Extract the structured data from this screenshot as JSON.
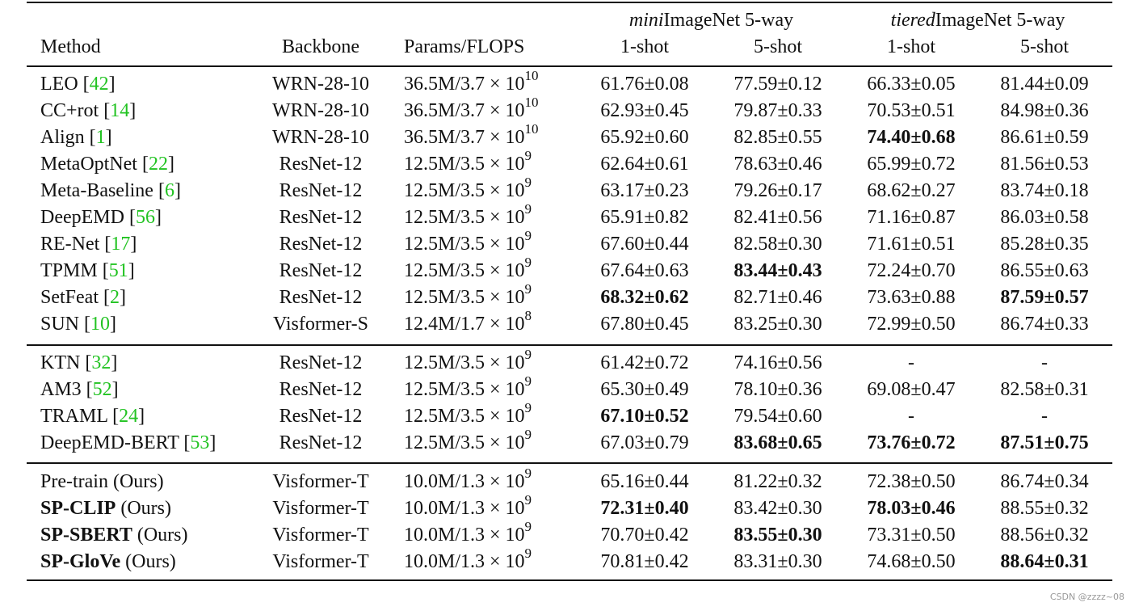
{
  "header": {
    "method": "Method",
    "backbone": "Backbone",
    "params": "Params/FLOPS",
    "groups": [
      {
        "title": [
          {
            "t": "mini",
            "style": "italic"
          },
          {
            "t": "ImageNet 5-way"
          }
        ],
        "columns": [
          "1-shot",
          "5-shot"
        ]
      },
      {
        "title": [
          {
            "t": "tiered",
            "style": "italic"
          },
          {
            "t": "ImageNet 5-way"
          }
        ],
        "columns": [
          "1-shot",
          "5-shot"
        ]
      }
    ]
  },
  "sections": [
    [
      {
        "method": [
          {
            "t": "LEO ["
          },
          {
            "t": "42",
            "style": "cite"
          },
          {
            "t": "]"
          }
        ],
        "backbone": "WRN-28-10",
        "params": {
          "base": "36.5M/3.7 × 10",
          "exp": "10"
        },
        "results": [
          {
            "text": "61.76±0.08"
          },
          {
            "text": "77.59±0.12"
          },
          {
            "text": "66.33±0.05"
          },
          {
            "text": "81.44±0.09"
          }
        ]
      },
      {
        "method": [
          {
            "t": "CC+rot ["
          },
          {
            "t": "14",
            "style": "cite"
          },
          {
            "t": "]"
          }
        ],
        "backbone": "WRN-28-10",
        "params": {
          "base": "36.5M/3.7 × 10",
          "exp": "10"
        },
        "results": [
          {
            "text": "62.93±0.45"
          },
          {
            "text": "79.87±0.33"
          },
          {
            "text": "70.53±0.51"
          },
          {
            "text": "84.98±0.36"
          }
        ]
      },
      {
        "method": [
          {
            "t": "Align ["
          },
          {
            "t": "1",
            "style": "cite"
          },
          {
            "t": "]"
          }
        ],
        "backbone": "WRN-28-10",
        "params": {
          "base": "36.5M/3.7 × 10",
          "exp": "10"
        },
        "results": [
          {
            "text": "65.92±0.60"
          },
          {
            "text": "82.85±0.55"
          },
          {
            "text": "74.40±0.68",
            "bold": true
          },
          {
            "text": "86.61±0.59"
          }
        ]
      },
      {
        "method": [
          {
            "t": "MetaOptNet ["
          },
          {
            "t": "22",
            "style": "cite"
          },
          {
            "t": "]"
          }
        ],
        "backbone": "ResNet-12",
        "params": {
          "base": "12.5M/3.5 × 10",
          "exp": "9"
        },
        "results": [
          {
            "text": "62.64±0.61"
          },
          {
            "text": "78.63±0.46"
          },
          {
            "text": "65.99±0.72"
          },
          {
            "text": "81.56±0.53"
          }
        ]
      },
      {
        "method": [
          {
            "t": "Meta-Baseline ["
          },
          {
            "t": "6",
            "style": "cite"
          },
          {
            "t": "]"
          }
        ],
        "backbone": "ResNet-12",
        "params": {
          "base": "12.5M/3.5 × 10",
          "exp": "9"
        },
        "results": [
          {
            "text": "63.17±0.23"
          },
          {
            "text": "79.26±0.17"
          },
          {
            "text": "68.62±0.27"
          },
          {
            "text": "83.74±0.18"
          }
        ]
      },
      {
        "method": [
          {
            "t": "DeepEMD ["
          },
          {
            "t": "56",
            "style": "cite"
          },
          {
            "t": "]"
          }
        ],
        "backbone": "ResNet-12",
        "params": {
          "base": "12.5M/3.5 × 10",
          "exp": "9"
        },
        "results": [
          {
            "text": "65.91±0.82"
          },
          {
            "text": "82.41±0.56"
          },
          {
            "text": "71.16±0.87"
          },
          {
            "text": "86.03±0.58"
          }
        ]
      },
      {
        "method": [
          {
            "t": "RE-Net ["
          },
          {
            "t": "17",
            "style": "cite"
          },
          {
            "t": "]"
          }
        ],
        "backbone": "ResNet-12",
        "params": {
          "base": "12.5M/3.5 × 10",
          "exp": "9"
        },
        "results": [
          {
            "text": "67.60±0.44"
          },
          {
            "text": "82.58±0.30"
          },
          {
            "text": "71.61±0.51"
          },
          {
            "text": "85.28±0.35"
          }
        ]
      },
      {
        "method": [
          {
            "t": "TPMM ["
          },
          {
            "t": "51",
            "style": "cite"
          },
          {
            "t": "]"
          }
        ],
        "backbone": "ResNet-12",
        "params": {
          "base": "12.5M/3.5 × 10",
          "exp": "9"
        },
        "results": [
          {
            "text": "67.64±0.63"
          },
          {
            "text": "83.44±0.43",
            "bold": true
          },
          {
            "text": "72.24±0.70"
          },
          {
            "text": "86.55±0.63"
          }
        ]
      },
      {
        "method": [
          {
            "t": "SetFeat ["
          },
          {
            "t": "2",
            "style": "cite"
          },
          {
            "t": "]"
          }
        ],
        "backbone": "ResNet-12",
        "params": {
          "base": "12.5M/3.5 × 10",
          "exp": "9"
        },
        "results": [
          {
            "text": "68.32±0.62",
            "bold": true
          },
          {
            "text": "82.71±0.46"
          },
          {
            "text": "73.63±0.88"
          },
          {
            "text": "87.59±0.57",
            "bold": true
          }
        ]
      },
      {
        "method": [
          {
            "t": "SUN ["
          },
          {
            "t": "10",
            "style": "cite"
          },
          {
            "t": "]"
          }
        ],
        "backbone": "Visformer-S",
        "params": {
          "base": "12.4M/1.7 × 10",
          "exp": "8"
        },
        "results": [
          {
            "text": "67.80±0.45"
          },
          {
            "text": "83.25±0.30"
          },
          {
            "text": "72.99±0.50"
          },
          {
            "text": "86.74±0.33"
          }
        ]
      }
    ],
    [
      {
        "method": [
          {
            "t": "KTN ["
          },
          {
            "t": "32",
            "style": "cite"
          },
          {
            "t": "]"
          }
        ],
        "backbone": "ResNet-12",
        "params": {
          "base": "12.5M/3.5 × 10",
          "exp": "9"
        },
        "results": [
          {
            "text": "61.42±0.72"
          },
          {
            "text": "74.16±0.56"
          },
          {
            "text": "-"
          },
          {
            "text": "-"
          }
        ]
      },
      {
        "method": [
          {
            "t": "AM3 ["
          },
          {
            "t": "52",
            "style": "cite"
          },
          {
            "t": "]"
          }
        ],
        "backbone": "ResNet-12",
        "params": {
          "base": "12.5M/3.5 × 10",
          "exp": "9"
        },
        "results": [
          {
            "text": "65.30±0.49"
          },
          {
            "text": "78.10±0.36"
          },
          {
            "text": "69.08±0.47"
          },
          {
            "text": "82.58±0.31"
          }
        ]
      },
      {
        "method": [
          {
            "t": "TRAML ["
          },
          {
            "t": "24",
            "style": "cite"
          },
          {
            "t": "]"
          }
        ],
        "backbone": "ResNet-12",
        "params": {
          "base": "12.5M/3.5 × 10",
          "exp": "9"
        },
        "results": [
          {
            "text": "67.10±0.52",
            "bold": true
          },
          {
            "text": "79.54±0.60"
          },
          {
            "text": "-"
          },
          {
            "text": "-"
          }
        ]
      },
      {
        "method": [
          {
            "t": "DeepEMD-BERT ["
          },
          {
            "t": "53",
            "style": "cite"
          },
          {
            "t": "]"
          }
        ],
        "backbone": "ResNet-12",
        "params": {
          "base": "12.5M/3.5 × 10",
          "exp": "9"
        },
        "results": [
          {
            "text": "67.03±0.79"
          },
          {
            "text": "83.68±0.65",
            "bold": true
          },
          {
            "text": "73.76±0.72",
            "bold": true
          },
          {
            "text": "87.51±0.75",
            "bold": true
          }
        ]
      }
    ],
    [
      {
        "method": [
          {
            "t": "Pre-train (Ours)"
          }
        ],
        "backbone": "Visformer-T",
        "params": {
          "base": "10.0M/1.3 × 10",
          "exp": "9"
        },
        "results": [
          {
            "text": "65.16±0.44"
          },
          {
            "text": "81.22±0.32"
          },
          {
            "text": "72.38±0.50"
          },
          {
            "text": "86.74±0.34"
          }
        ]
      },
      {
        "method": [
          {
            "t": "SP-CLIP",
            "style": "bold"
          },
          {
            "t": " (Ours)"
          }
        ],
        "backbone": "Visformer-T",
        "params": {
          "base": "10.0M/1.3 × 10",
          "exp": "9"
        },
        "results": [
          {
            "text": "72.31±0.40",
            "bold": true
          },
          {
            "text": "83.42±0.30"
          },
          {
            "text": "78.03±0.46",
            "bold": true
          },
          {
            "text": "88.55±0.32"
          }
        ]
      },
      {
        "method": [
          {
            "t": "SP-SBERT",
            "style": "bold"
          },
          {
            "t": " (Ours)"
          }
        ],
        "backbone": "Visformer-T",
        "params": {
          "base": "10.0M/1.3 × 10",
          "exp": "9"
        },
        "results": [
          {
            "text": "70.70±0.42"
          },
          {
            "text": "83.55±0.30",
            "bold": true
          },
          {
            "text": "73.31±0.50"
          },
          {
            "text": "88.56±0.32"
          }
        ]
      },
      {
        "method": [
          {
            "t": "SP-GloVe",
            "style": "bold"
          },
          {
            "t": " (Ours)"
          }
        ],
        "backbone": "Visformer-T",
        "params": {
          "base": "10.0M/1.3 × 10",
          "exp": "9"
        },
        "results": [
          {
            "text": "70.81±0.42"
          },
          {
            "text": "83.31±0.30"
          },
          {
            "text": "74.68±0.50"
          },
          {
            "text": "88.64±0.31",
            "bold": true
          }
        ]
      }
    ]
  ],
  "watermark": "CSDN @zzzz~08"
}
